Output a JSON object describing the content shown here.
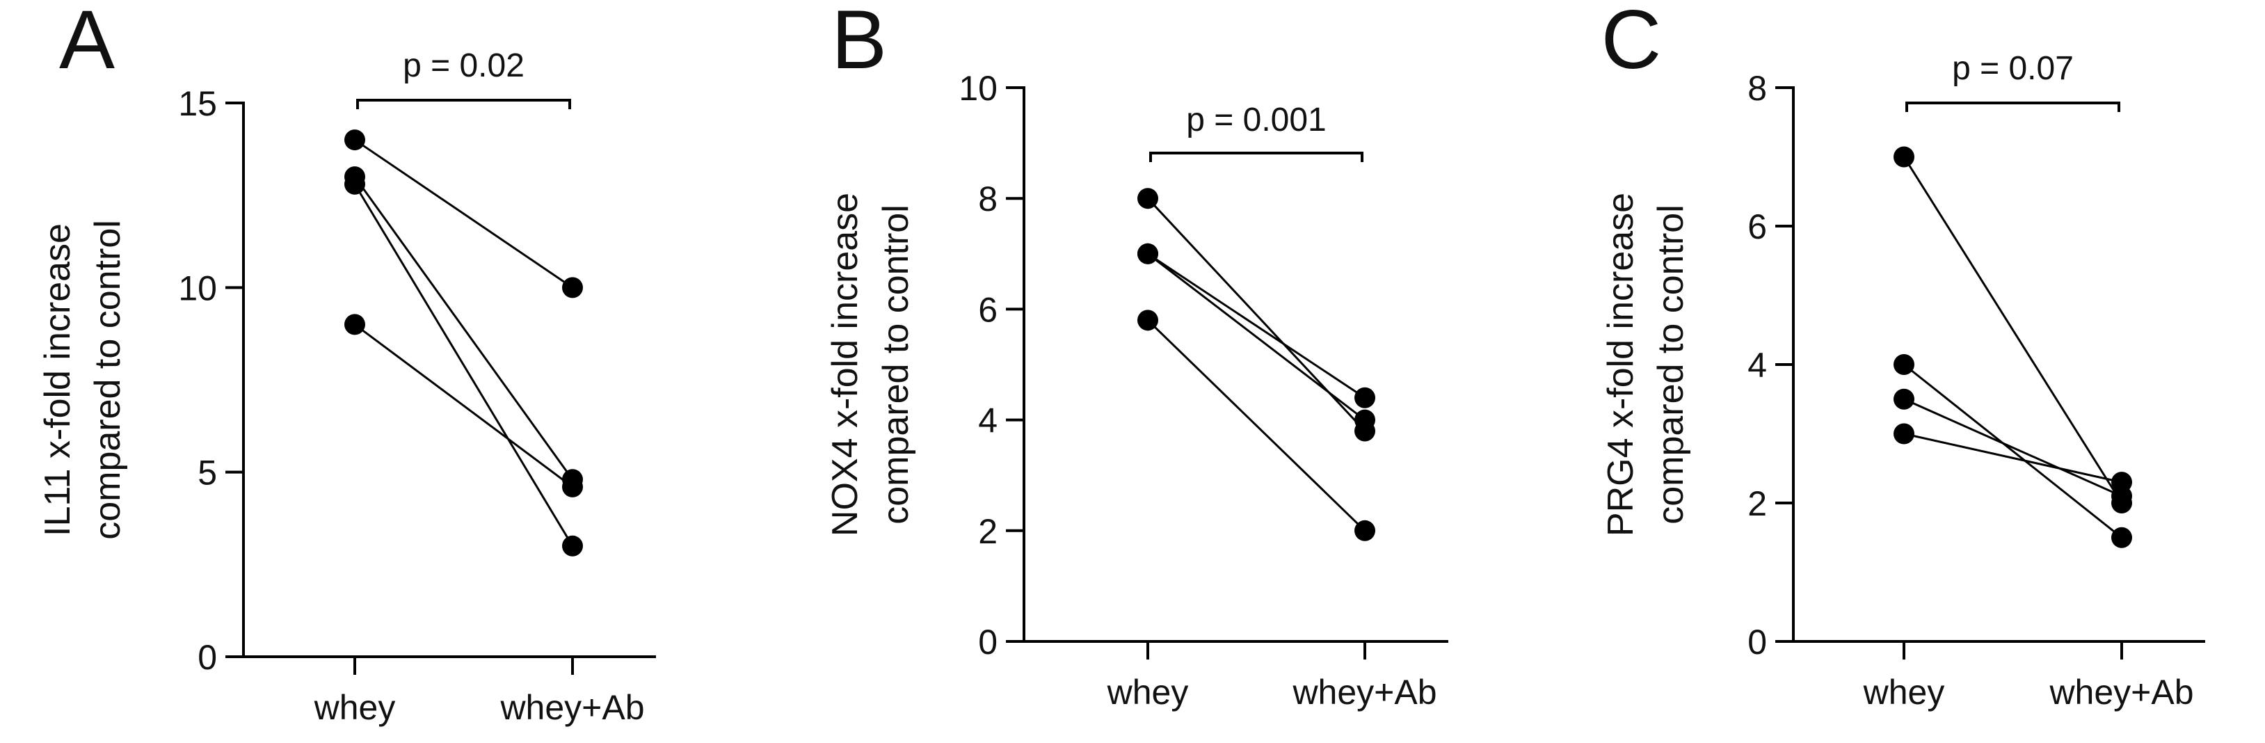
{
  "chart_data": [
    {
      "type": "line",
      "panel_label": "A",
      "categories": [
        "whey",
        "whey+Ab"
      ],
      "ylabel_lines": [
        "IL11 x-fold increase",
        "compared to control"
      ],
      "ylim": [
        0,
        15
      ],
      "yticks": [
        0,
        5,
        10,
        15
      ],
      "grid": false,
      "series": [
        {
          "values": [
            14.0,
            10.0
          ]
        },
        {
          "values": [
            13.0,
            4.8
          ]
        },
        {
          "values": [
            12.8,
            3.0
          ]
        },
        {
          "values": [
            9.0,
            4.6
          ]
        }
      ],
      "annotation": "p = 0.02"
    },
    {
      "type": "line",
      "panel_label": "B",
      "categories": [
        "whey",
        "whey+Ab"
      ],
      "ylabel_lines": [
        "NOX4 x-fold increase",
        "compared to control"
      ],
      "ylim": [
        0,
        10
      ],
      "yticks": [
        0,
        2,
        4,
        6,
        8,
        10
      ],
      "grid": false,
      "series": [
        {
          "values": [
            8.0,
            3.8
          ]
        },
        {
          "values": [
            7.0,
            4.4
          ]
        },
        {
          "values": [
            7.0,
            4.0
          ]
        },
        {
          "values": [
            5.8,
            2.0
          ]
        }
      ],
      "annotation": "p = 0.001"
    },
    {
      "type": "line",
      "panel_label": "C",
      "categories": [
        "whey",
        "whey+Ab"
      ],
      "ylabel_lines": [
        "PRG4 x-fold increase",
        "compared to control"
      ],
      "ylim": [
        0,
        8
      ],
      "yticks": [
        0,
        2,
        4,
        6,
        8
      ],
      "grid": false,
      "series": [
        {
          "values": [
            7.0,
            2.0
          ]
        },
        {
          "values": [
            4.0,
            1.5
          ]
        },
        {
          "values": [
            3.5,
            2.1
          ]
        },
        {
          "values": [
            3.0,
            2.3
          ]
        }
      ],
      "annotation": "p = 0.07"
    }
  ]
}
